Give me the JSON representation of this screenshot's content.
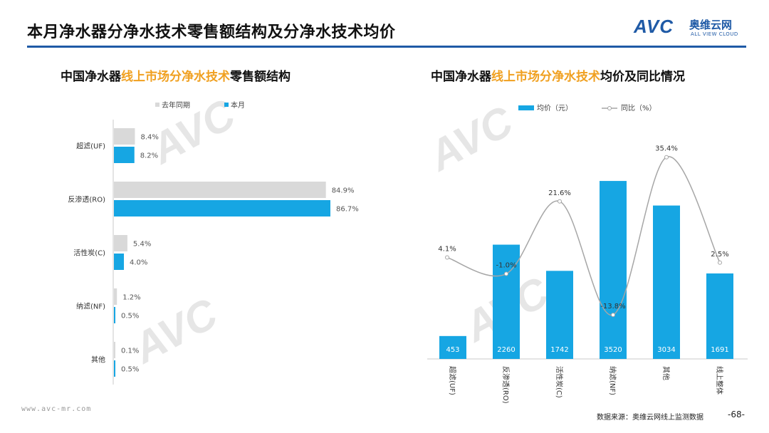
{
  "page": {
    "title": "本月净水器分净水技术零售额结构及分净水技术均价",
    "logo": {
      "mark": "AVC",
      "name_cn": "奥维云网",
      "name_en": "ALL VIEW CLOUD"
    },
    "watermark": "AVC",
    "footer_url": "www.avc-mr.com",
    "footer_source": "数据来源：奥维云网线上监测数据",
    "page_number": "-68-"
  },
  "left_chart": {
    "title_parts": [
      "中国净水器",
      "线上市场分净水技术",
      "零售额结构"
    ],
    "legend": [
      "去年同期",
      "本月"
    ]
  },
  "right_chart": {
    "title_parts": [
      "中国净水器",
      "线上市场分净水技术",
      "均价及同比情况"
    ],
    "legend": [
      "均价（元）",
      "同比（%）"
    ]
  },
  "chart_data": [
    {
      "type": "bar",
      "orientation": "horizontal",
      "categories": [
        "超滤(UF)",
        "反渗透(RO)",
        "活性炭(C)",
        "纳滤(NF)",
        "其他"
      ],
      "series": [
        {
          "name": "去年同期",
          "values": [
            8.4,
            84.9,
            5.4,
            1.2,
            0.1
          ],
          "color": "#d9d9d9"
        },
        {
          "name": "本月",
          "values": [
            8.2,
            86.7,
            4.0,
            0.5,
            0.5
          ],
          "color": "#16a6e3"
        }
      ],
      "value_suffix": "%",
      "xlim": [
        0,
        100
      ],
      "legend_position": "top"
    },
    {
      "type": "bar",
      "categories": [
        "超滤(UF)",
        "反渗透(RO)",
        "活性炭(C)",
        "纳滤(NF)",
        "其他",
        "线上整体"
      ],
      "series": [
        {
          "name": "均价（元）",
          "type": "bar",
          "values": [
            453,
            2260,
            1742,
            3520,
            3034,
            1691
          ],
          "color": "#16a6e3"
        },
        {
          "name": "同比（%）",
          "type": "line",
          "values": [
            4.1,
            -1.0,
            21.6,
            -13.8,
            35.4,
            2.5
          ],
          "color": "#a6a6a6",
          "axis": "secondary"
        }
      ],
      "y_range": [
        0,
        4000
      ],
      "y2_range": [
        -20,
        40
      ],
      "value_suffix_line": "%",
      "legend_position": "top"
    }
  ]
}
